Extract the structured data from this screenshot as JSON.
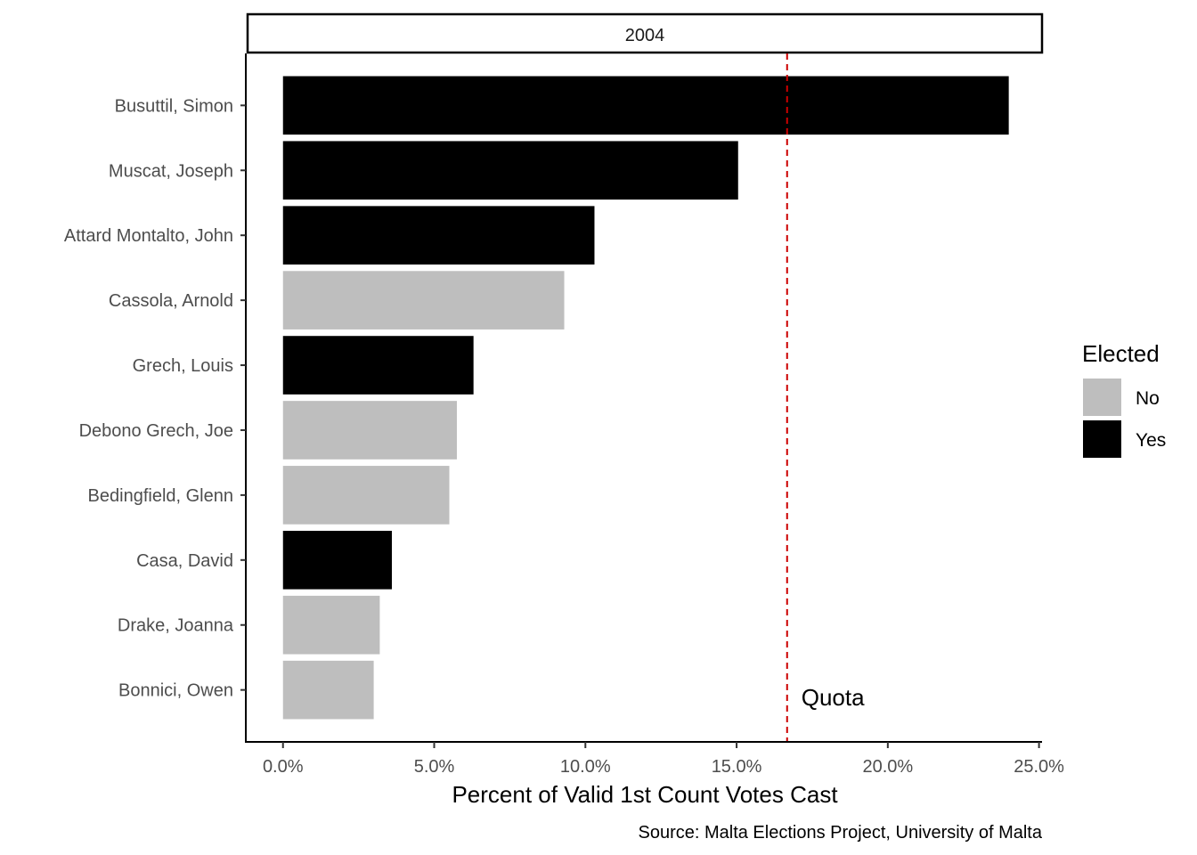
{
  "chart_data": {
    "type": "bar",
    "orientation": "horizontal",
    "facet_label": "2004",
    "categories": [
      "Busuttil, Simon",
      "Muscat, Joseph",
      "Attard Montalto, John",
      "Cassola, Arnold",
      "Grech, Louis",
      "Debono Grech, Joe",
      "Bedingfield, Glenn",
      "Casa, David",
      "Drake, Joanna",
      "Bonnici, Owen"
    ],
    "values": [
      24.0,
      15.05,
      10.3,
      9.3,
      6.3,
      5.75,
      5.5,
      3.6,
      3.2,
      3.0
    ],
    "elected": [
      "Yes",
      "Yes",
      "Yes",
      "No",
      "Yes",
      "No",
      "No",
      "Yes",
      "No",
      "No"
    ],
    "xlim": [
      -1.2,
      25.1
    ],
    "xticks": [
      0,
      5,
      10,
      15,
      20,
      25
    ],
    "xtick_labels": [
      "0.0%",
      "5.0%",
      "10.0%",
      "15.0%",
      "20.0%",
      "25.0%"
    ],
    "xlabel": "Percent of Valid 1st Count Votes Cast",
    "ylabel": "",
    "caption": "Source: Malta Elections Project, University of Malta",
    "reference_line": {
      "value": 16.67,
      "label": "Quota",
      "color": "#cc0000",
      "style": "dashed"
    },
    "legend": {
      "title": "Elected",
      "position": "right",
      "entries": [
        {
          "label": "No",
          "color": "#bebebe"
        },
        {
          "label": "Yes",
          "color": "#000000"
        }
      ]
    },
    "colors": {
      "Yes": "#000000",
      "No": "#bebebe"
    },
    "grid": false
  }
}
